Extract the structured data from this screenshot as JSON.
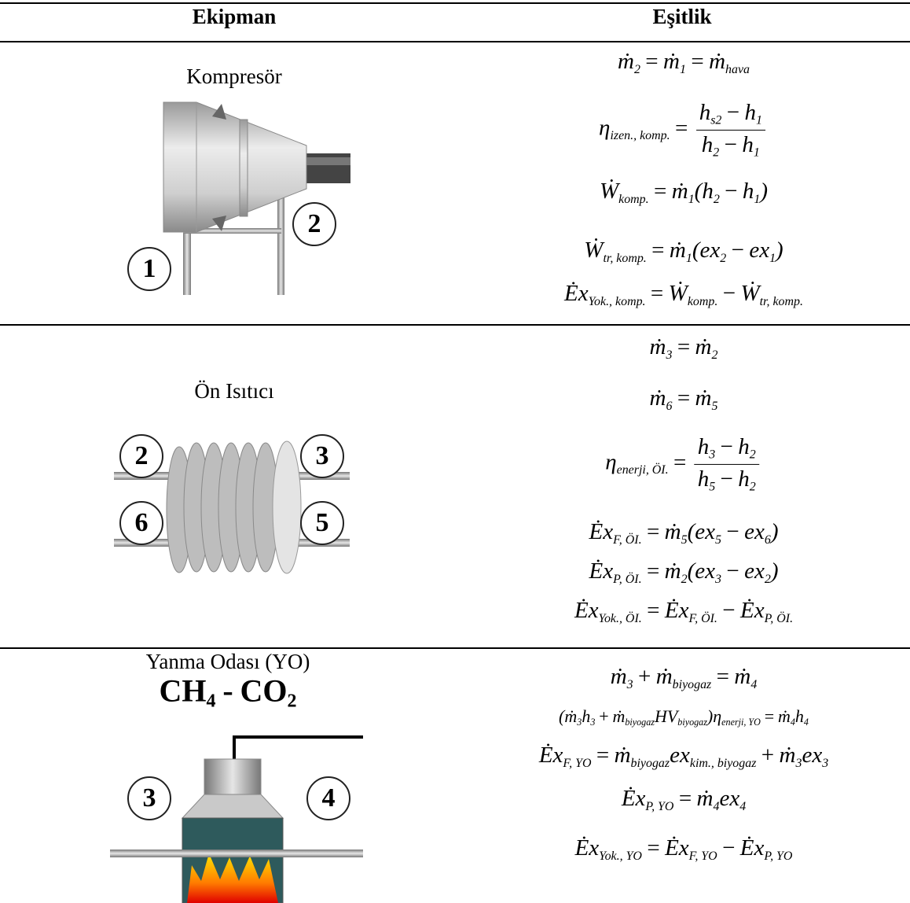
{
  "header": {
    "col1": "Ekipman",
    "col2": "Eşitlik"
  },
  "rows": [
    {
      "equipment": "Kompresör",
      "diagram_labels": [
        "1",
        "2"
      ],
      "equations": [
        [
          {
            "t": "ṁ",
            "s": "2"
          },
          "=",
          {
            "t": "ṁ",
            "s": "1"
          },
          "=",
          {
            "t": "ṁ",
            "s": "hava"
          }
        ],
        [
          {
            "t": "η",
            "s": "izen., komp."
          },
          "=",
          {
            "num": [
              {
                "t": "h",
                "s": "s2"
              },
              "−",
              {
                "t": "h",
                "s": "1"
              }
            ],
            "den": [
              {
                "t": "h",
                "s": "2"
              },
              "−",
              {
                "t": "h",
                "s": "1"
              }
            ]
          }
        ],
        [
          {
            "t": "Ẇ",
            "s": "komp."
          },
          "=",
          {
            "t": "ṁ",
            "s": "1"
          },
          "(",
          {
            "t": "h",
            "s": "2"
          },
          "−",
          {
            "t": "h",
            "s": "1"
          },
          ")"
        ],
        [
          {
            "t": "Ẇ",
            "s": "tr, komp."
          },
          "=",
          {
            "t": "ṁ",
            "s": "1"
          },
          "(",
          {
            "t": "ex",
            "s": "2"
          },
          "−",
          {
            "t": "ex",
            "s": "1"
          },
          ")"
        ],
        [
          {
            "t": "Ėx",
            "s": "Yok., komp."
          },
          "=",
          {
            "t": "Ẇ",
            "s": "komp."
          },
          "−",
          {
            "t": "Ẇ",
            "s": "tr, komp."
          }
        ]
      ]
    },
    {
      "equipment": "Ön Isıtıcı",
      "diagram_labels": [
        "2",
        "3",
        "6",
        "5"
      ],
      "equations": [
        [
          {
            "t": "ṁ",
            "s": "3"
          },
          "=",
          {
            "t": "ṁ",
            "s": "2"
          }
        ],
        [
          {
            "t": "ṁ",
            "s": "6"
          },
          "=",
          {
            "t": "ṁ",
            "s": "5"
          }
        ],
        [
          {
            "t": "η",
            "s": "enerji, ÖI."
          },
          "=",
          {
            "num": [
              {
                "t": "h",
                "s": "3"
              },
              "−",
              {
                "t": "h",
                "s": "2"
              }
            ],
            "den": [
              {
                "t": "h",
                "s": "5"
              },
              "−",
              {
                "t": "h",
                "s": "2"
              }
            ]
          }
        ],
        [
          {
            "t": "Ėx",
            "s": "F, ÖI."
          },
          "=",
          {
            "t": "ṁ",
            "s": "5"
          },
          "(",
          {
            "t": "ex",
            "s": "5"
          },
          "−",
          {
            "t": "ex",
            "s": "6"
          },
          ")"
        ],
        [
          {
            "t": "Ėx",
            "s": "P, ÖI."
          },
          "=",
          {
            "t": "ṁ",
            "s": "2"
          },
          "(",
          {
            "t": "ex",
            "s": "3"
          },
          "−",
          {
            "t": "ex",
            "s": "2"
          },
          ")"
        ],
        [
          {
            "t": "Ėx",
            "s": "Yok., ÖI."
          },
          "=",
          {
            "t": "Ėx",
            "s": "F, ÖI."
          },
          "−",
          {
            "t": "Ėx",
            "s": "P, ÖI."
          }
        ]
      ]
    },
    {
      "equipment": "Yanma Odası (YO)",
      "diagram_labels": [
        "3",
        "4"
      ],
      "gas_label": [
        {
          "t": "CH",
          "s": "4"
        },
        "-",
        {
          "t": "CO",
          "s": "2"
        }
      ],
      "equations": [
        [
          {
            "t": "ṁ",
            "s": "3"
          },
          "+",
          {
            "t": "ṁ",
            "s": "biyogaz"
          },
          "=",
          {
            "t": "ṁ",
            "s": "4"
          }
        ],
        [
          "(",
          {
            "t": "ṁ",
            "s": "3"
          },
          {
            "t": "h",
            "s": "3"
          },
          "+",
          {
            "t": "ṁ",
            "s": "biyogaz"
          },
          {
            "t": "HV",
            "s": "biyogaz"
          },
          ")",
          {
            "t": "η",
            "s": "enerji, YO"
          },
          "=",
          {
            "t": "ṁ",
            "s": "4"
          },
          {
            "t": "h",
            "s": "4"
          }
        ],
        [
          {
            "t": "Ėx",
            "s": "F, YO"
          },
          "=",
          {
            "t": "ṁ",
            "s": "biyogaz"
          },
          {
            "t": "ex",
            "s": "kim., biyogaz"
          },
          "+",
          {
            "t": "ṁ",
            "s": "3"
          },
          {
            "t": "ex",
            "s": "3"
          }
        ],
        [
          {
            "t": "Ėx",
            "s": "P, YO"
          },
          "=",
          {
            "t": "ṁ",
            "s": "4"
          },
          {
            "t": "ex",
            "s": "4"
          }
        ],
        [
          {
            "t": "Ėx",
            "s": "Yok., YO"
          },
          "=",
          {
            "t": "Ėx",
            "s": "F, YO"
          },
          "−",
          {
            "t": "Ėx",
            "s": "P, YO"
          }
        ]
      ]
    }
  ]
}
